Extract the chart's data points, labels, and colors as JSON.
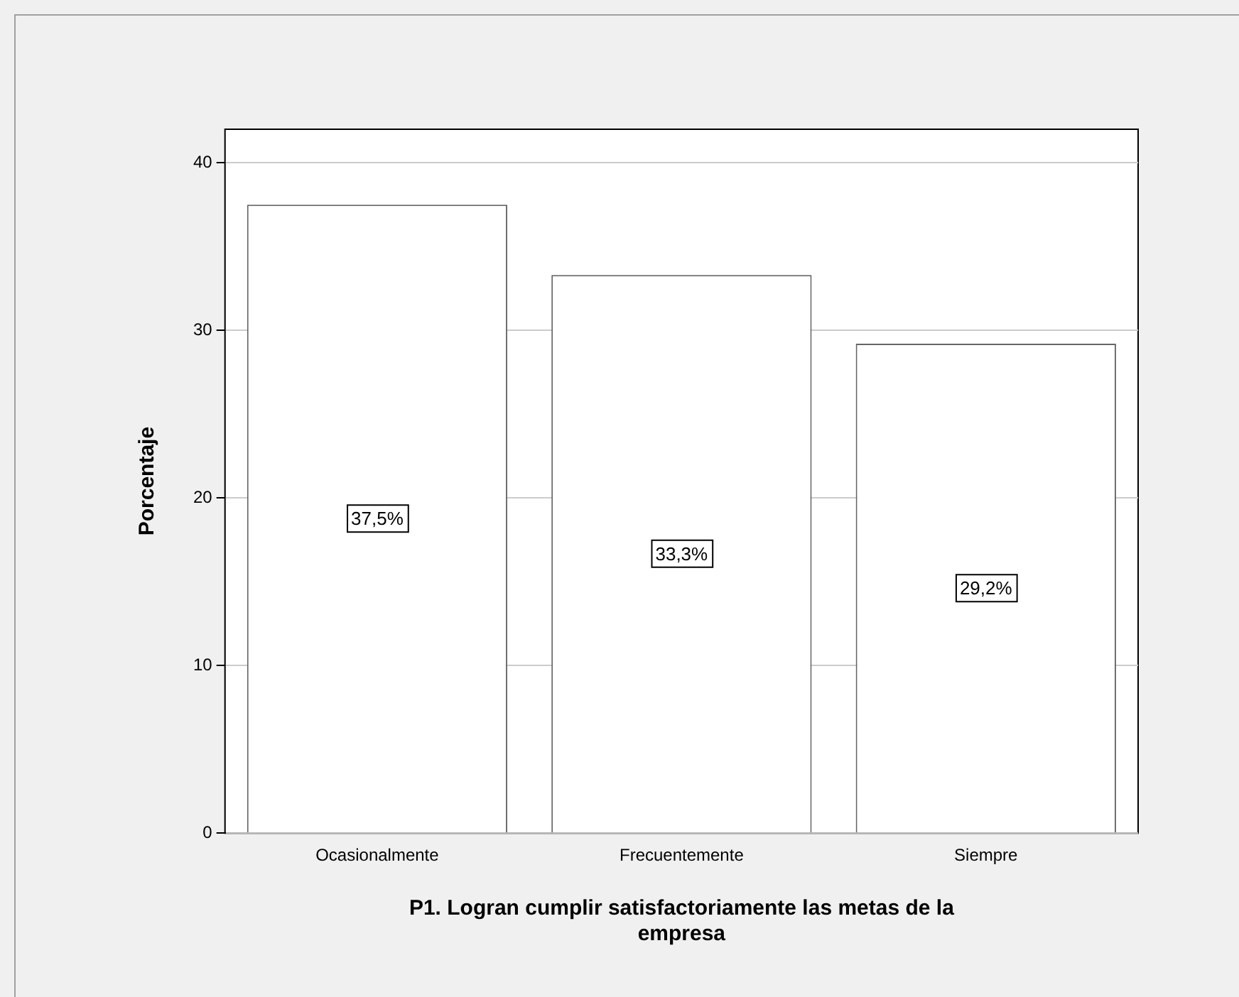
{
  "chart_data": {
    "type": "bar",
    "xlabel": "P1. Logran cumplir satisfactoriamente las metas de la empresa",
    "ylabel": "Porcentaje",
    "categories": [
      "Ocasionalmente",
      "Frecuentemente",
      "Siempre"
    ],
    "values": [
      37.5,
      33.3,
      29.2
    ],
    "value_labels": [
      "37,5%",
      "33,3%",
      "29,2%"
    ],
    "color": "#ffffff",
    "ylim": [
      0,
      42
    ],
    "yticks": [
      0,
      10,
      20,
      30,
      40
    ],
    "grid": "y",
    "legend": false
  }
}
